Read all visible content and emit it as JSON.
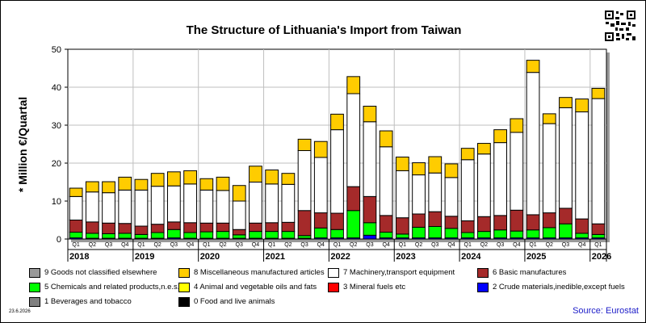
{
  "title": "The Structure of Lithuania's Import from Taiwan",
  "source_text": "Source: Eurostat",
  "date_text": "23.6.2026",
  "chart_data": {
    "type": "bar",
    "stacked": true,
    "title": "The Structure of Lithuania's Import from Taiwan",
    "ylabel": "* Million €/Quartal",
    "xlabel": "",
    "ylim": [
      0,
      50
    ],
    "yticks": [
      0,
      10,
      20,
      30,
      40,
      50
    ],
    "grid": true,
    "categories": [
      "Q1",
      "Q2",
      "Q3",
      "Q4",
      "Q1",
      "Q2",
      "Q3",
      "Q4",
      "Q1",
      "Q2",
      "Q3",
      "Q4",
      "Q1",
      "Q2",
      "Q3",
      "Q4",
      "Q1",
      "Q2",
      "Q3",
      "Q4",
      "Q1",
      "Q2",
      "Q3",
      "Q4",
      "Q1",
      "Q2",
      "Q3",
      "Q4",
      "Q1",
      "Q2",
      "Q3",
      "Q4",
      "Q1"
    ],
    "years": [
      {
        "label": "2018",
        "start": 0,
        "end": 3
      },
      {
        "label": "2019",
        "start": 4,
        "end": 7
      },
      {
        "label": "2020",
        "start": 8,
        "end": 11
      },
      {
        "label": "2021",
        "start": 12,
        "end": 15
      },
      {
        "label": "2022",
        "start": 16,
        "end": 19
      },
      {
        "label": "2023",
        "start": 20,
        "end": 23
      },
      {
        "label": "2024",
        "start": 24,
        "end": 27
      },
      {
        "label": "2025",
        "start": 28,
        "end": 31
      },
      {
        "label": "2026",
        "start": 32,
        "end": 32
      }
    ],
    "series": [
      {
        "name": "0 Food and live animals",
        "color": "#000000",
        "values": [
          0,
          0,
          0,
          0,
          0,
          0,
          0,
          0,
          0,
          0,
          0,
          0,
          0,
          0,
          0,
          0,
          0,
          0,
          0,
          0,
          0,
          0,
          0,
          0,
          0,
          0,
          0,
          0,
          0,
          0,
          0,
          0,
          0
        ]
      },
      {
        "name": "1 Beverages and tobacco",
        "color": "#808080",
        "values": [
          0,
          0,
          0,
          0,
          0,
          0,
          0,
          0,
          0,
          0,
          0,
          0,
          0,
          0,
          0,
          0,
          0,
          0,
          0,
          0,
          0,
          0,
          0,
          0,
          0,
          0,
          0,
          0,
          0,
          0,
          0,
          0,
          0
        ]
      },
      {
        "name": "2 Crude materials,inedible,except fuels",
        "color": "#0000ff",
        "values": [
          0.3,
          0.2,
          0.2,
          0.2,
          0.2,
          0.2,
          0.3,
          0.2,
          0.2,
          0.2,
          0.2,
          0.2,
          0.2,
          0.2,
          0.2,
          0.3,
          0.3,
          0.3,
          1.0,
          0.3,
          0.3,
          0.3,
          0.3,
          0.3,
          0.3,
          0.3,
          0.3,
          0.3,
          0.3,
          0.3,
          0.3,
          0.3,
          0.3
        ]
      },
      {
        "name": "3 Mineral fuels etc",
        "color": "#ff0000",
        "values": [
          0,
          0,
          0,
          0,
          0,
          0,
          0,
          0,
          0,
          0,
          0,
          0,
          0,
          0,
          0,
          0,
          0,
          0,
          0,
          0,
          0,
          0,
          0,
          0,
          0,
          0,
          0,
          0,
          0,
          0,
          0,
          0,
          0
        ]
      },
      {
        "name": "5 Chemicals and related products,n.e.s.",
        "color": "#00ff00",
        "values": [
          1.5,
          1.3,
          1.2,
          1.3,
          1.0,
          1.5,
          2.2,
          1.5,
          1.7,
          1.8,
          0.9,
          1.8,
          1.8,
          1.8,
          0.7,
          2.6,
          2.2,
          7.2,
          3.3,
          1.5,
          1.0,
          2.8,
          3.0,
          2.5,
          1.4,
          1.7,
          2.1,
          1.8,
          2.1,
          2.7,
          3.7,
          1.2,
          0.9
        ]
      },
      {
        "name": "6 Basic manufactures",
        "color": "#a52a2a",
        "values": [
          3.2,
          3.0,
          2.8,
          2.6,
          2.2,
          2.2,
          2.0,
          2.6,
          2.3,
          2.2,
          1.4,
          2.2,
          2.3,
          2.4,
          6.6,
          4.0,
          4.3,
          6.3,
          6.9,
          4.4,
          4.3,
          3.5,
          3.9,
          3.2,
          3.1,
          3.9,
          3.8,
          5.5,
          4.0,
          3.9,
          4.1,
          3.8,
          2.8
        ]
      },
      {
        "name": "7 Machinery,transport equipment",
        "color": "#ffffff",
        "values": [
          6.2,
          7.9,
          8.0,
          8.8,
          9.5,
          10.0,
          9.5,
          10.2,
          8.7,
          8.6,
          7.5,
          10.8,
          10.2,
          10.0,
          15.8,
          14.6,
          22.0,
          24.5,
          19.7,
          18.1,
          12.4,
          10.3,
          10.2,
          10.2,
          16.1,
          16.5,
          19.2,
          20.5,
          37.5,
          23.5,
          26.5,
          28.2,
          33.0
        ]
      },
      {
        "name": "4 Animal and vegetable oils and fats",
        "color": "#ffff00",
        "values": [
          0,
          0,
          0,
          0,
          0,
          0,
          0,
          0,
          0,
          0,
          0,
          0,
          0,
          0,
          0,
          0,
          0,
          0,
          0,
          0,
          0,
          0,
          0,
          0,
          0,
          0,
          0,
          0,
          0,
          0,
          0,
          0,
          0
        ]
      },
      {
        "name": "8 Miscellaneous manufactured articles",
        "color": "#ffcc00",
        "values": [
          2.2,
          2.7,
          2.9,
          3.4,
          2.8,
          3.4,
          3.7,
          3.5,
          3.0,
          3.5,
          4.1,
          4.2,
          3.7,
          2.9,
          3.0,
          4.2,
          4.1,
          4.5,
          4.1,
          4.2,
          3.6,
          3.2,
          4.3,
          3.6,
          3.0,
          2.8,
          3.4,
          3.6,
          3.2,
          2.6,
          2.7,
          3.4,
          2.7
        ]
      },
      {
        "name": "9 Goods not classified elsewhere",
        "color": "#999999",
        "values": [
          0,
          0,
          0,
          0,
          0,
          0,
          0,
          0,
          0,
          0,
          0,
          0,
          0,
          0,
          0,
          0,
          0,
          0,
          0,
          0,
          0,
          0,
          0,
          0,
          0,
          0,
          0,
          0,
          0,
          0,
          0,
          0,
          0
        ]
      }
    ],
    "legend": [
      {
        "label": "9 Goods not classified elsewhere",
        "color": "#999999"
      },
      {
        "label": "8 Miscellaneous manufactured articles",
        "color": "#ffcc00"
      },
      {
        "label": "7 Machinery,transport equipment",
        "color": "#ffffff"
      },
      {
        "label": "6 Basic manufactures",
        "color": "#a52a2a"
      },
      {
        "label": "5 Chemicals and related products,n.e.s.",
        "color": "#00ff00"
      },
      {
        "label": "4 Animal and vegetable oils and fats",
        "color": "#ffff00"
      },
      {
        "label": "3 Mineral fuels etc",
        "color": "#ff0000"
      },
      {
        "label": "2 Crude materials,inedible,except fuels",
        "color": "#0000ff"
      },
      {
        "label": "1 Beverages and tobacco",
        "color": "#808080"
      },
      {
        "label": "0 Food and live animals",
        "color": "#000000"
      }
    ]
  }
}
